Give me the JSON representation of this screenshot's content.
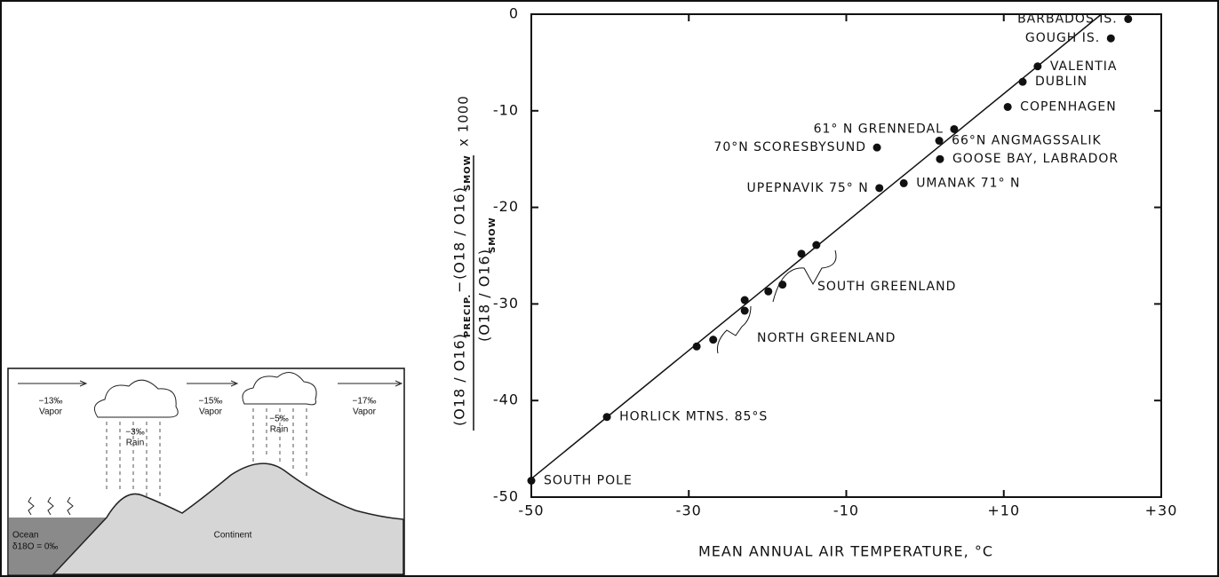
{
  "chart_data": {
    "type": "scatter",
    "xlabel": "MEAN ANNUAL AIR TEMPERATURE, °C",
    "ylabel": {
      "num_a": "(O18 / O16)",
      "sub_a": "PRECIP.",
      "minus": "−",
      "num_b": "(O18 / O16)",
      "sub_b": "SMOW",
      "den": "(O18 / O16)",
      "sub_den": "SMOW",
      "times": "x 1000"
    },
    "xlim": [
      -50,
      30
    ],
    "xticks": [
      -50,
      -30,
      -10,
      {
        "value": 10,
        "label": "+10"
      },
      {
        "value": 30,
        "label": "+30"
      }
    ],
    "ylim": [
      -50,
      0
    ],
    "yticks": [
      0,
      -10,
      -20,
      -30,
      -40,
      -50
    ],
    "color": "#111111",
    "x": [
      25.8,
      23.6,
      14.3,
      12.4,
      10.5,
      3.7,
      1.8,
      1.9,
      -6.1,
      -2.7,
      -5.8,
      -13.8,
      -15.7,
      -18.1,
      -19.9,
      -22.9,
      -22.9,
      -26.9,
      -29.0,
      -40.4,
      -50
    ],
    "y": [
      -0.5,
      -2.5,
      -5.4,
      -7.0,
      -9.6,
      -11.9,
      -13.1,
      -15.0,
      -13.8,
      -17.5,
      -18.0,
      -23.9,
      -24.8,
      -28.0,
      -28.7,
      -29.6,
      -30.7,
      -33.7,
      -34.4,
      -41.7,
      -48.3
    ],
    "labels": [
      "BARBADOS IS.",
      "GOUGH IS.",
      "VALENTIA",
      "DUBLIN",
      "COPENHAGEN",
      "61° N GRENNEDAL",
      "66°N ANGMAGSSALIK",
      "GOOSE BAY, LABRADOR",
      "70°N SCORESBYSUND",
      "UMANAK 71° N",
      "UPEPNAVIK 75° N",
      null,
      null,
      null,
      null,
      null,
      null,
      null,
      null,
      "HORLICK MTNS. 85°S",
      "SOUTH POLE"
    ],
    "fit_line": {
      "x": [
        -50,
        22.4
      ],
      "y": [
        -48.1,
        0
      ]
    },
    "annotations": [
      "SOUTH GREENLAND",
      "NORTH GREENLAND"
    ]
  },
  "diagram": {
    "vapor": [
      "−13‰",
      "−15‰",
      "−17‰"
    ],
    "vapor_label": "Vapor",
    "rain": [
      "−3‰",
      "−5‰"
    ],
    "rain_label": "Rain",
    "ocean": "Ocean",
    "ocean_value": "δ18O = 0‰",
    "continent": "Continent"
  }
}
